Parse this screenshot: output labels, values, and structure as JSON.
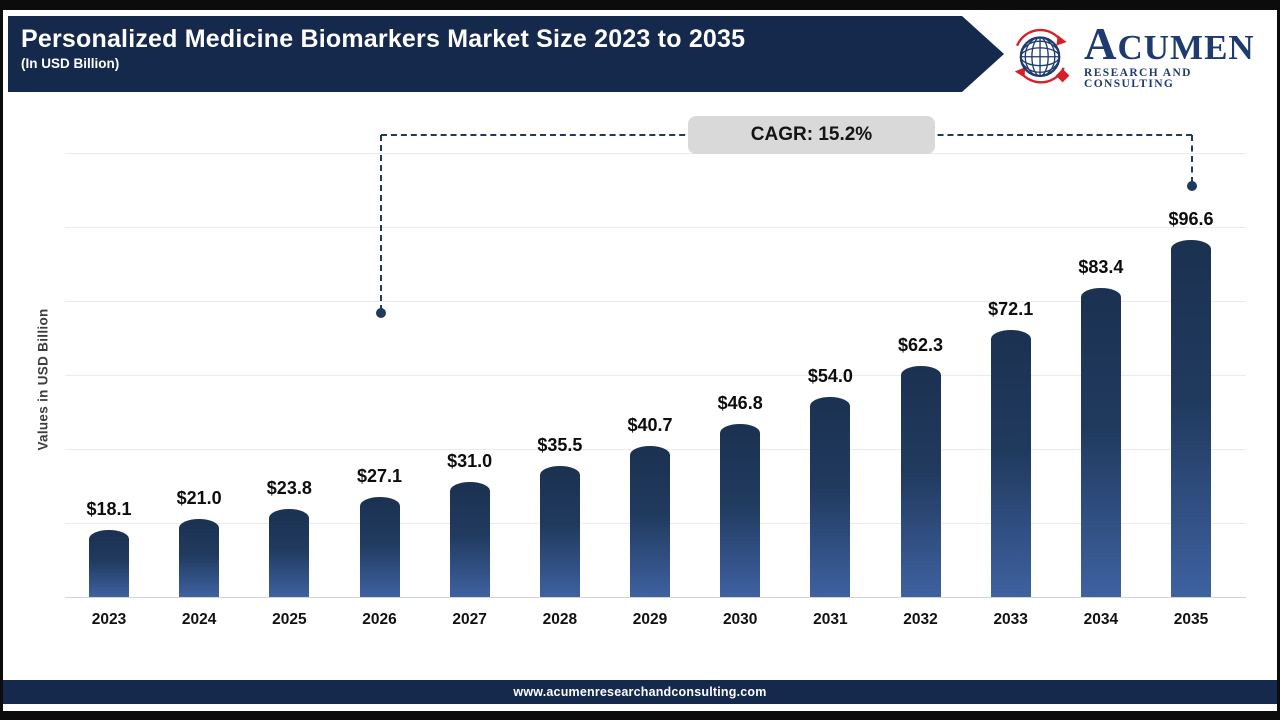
{
  "header": {
    "title": "Personalized Medicine Biomarkers Market Size 2023 to 2035",
    "subtitle": "(In USD Billion)",
    "logo": {
      "name_initial": "A",
      "name_rest": "CUMEN",
      "tagline": "RESEARCH AND CONSULTING"
    }
  },
  "callout": {
    "cagr_label": "CAGR: 15.2%"
  },
  "chart_data": {
    "type": "bar",
    "title": "Personalized Medicine Biomarkers Market Size 2023 to 2035",
    "xlabel": "",
    "ylabel": "Values in USD Billion",
    "categories": [
      "2023",
      "2024",
      "2025",
      "2026",
      "2027",
      "2028",
      "2029",
      "2030",
      "2031",
      "2032",
      "2033",
      "2034",
      "2035"
    ],
    "values": [
      18.1,
      21.0,
      23.8,
      27.1,
      31.0,
      35.5,
      40.7,
      46.8,
      54.0,
      62.3,
      72.1,
      83.4,
      96.6
    ],
    "value_prefix": "$",
    "ylim": [
      0,
      120
    ],
    "grid_step": 20,
    "grid": "horizontal-only",
    "legend_position": "none",
    "annotations": {
      "cagr": "15.2%",
      "cagr_span": [
        "2026",
        "2035"
      ]
    }
  },
  "footer": {
    "website": "www.acumenresearchandconsulting.com"
  },
  "colors": {
    "banner_navy": "#15294d",
    "bar_gradient_top": "#1b3151",
    "bar_gradient_bottom": "#3e61a0",
    "logo_navy": "#1e3a6e",
    "logo_red": "#d42127",
    "callout_bg": "#d9d9d9",
    "connector_navy": "#1f3a5c",
    "gridline": "#ebebeb"
  }
}
